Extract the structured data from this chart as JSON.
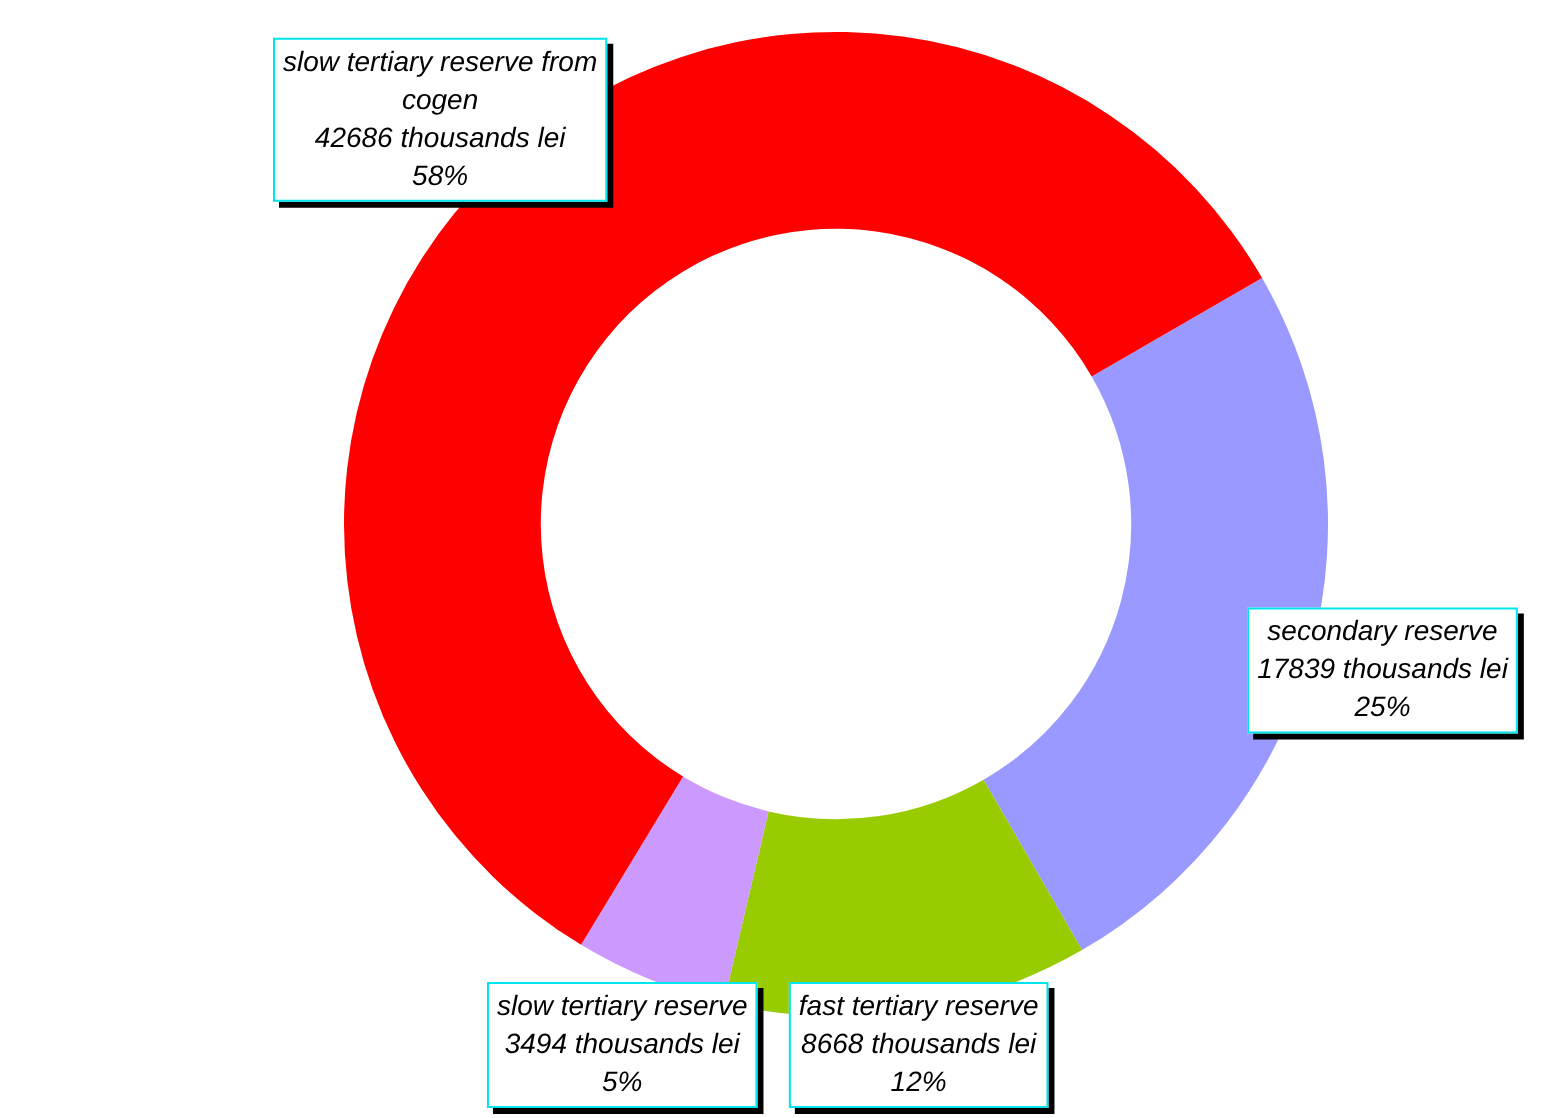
{
  "chart_data": {
    "type": "donut",
    "categories": [
      "secondary reserve",
      "fast tertiary reserve",
      "slow tertiary reserve",
      "slow tertiary reserve from cogen"
    ],
    "values": [
      25,
      12,
      5,
      58
    ],
    "colors": [
      "#9999ff",
      "#99cc00",
      "#cc99ff",
      "#ff0000"
    ],
    "value_labels": [
      "17839 thousands lei\n25%",
      "8668 thousands lei\n12%",
      "3494 thousands lei\n5%",
      "42686 thousands lei\n58%"
    ],
    "legend": false
  }
}
